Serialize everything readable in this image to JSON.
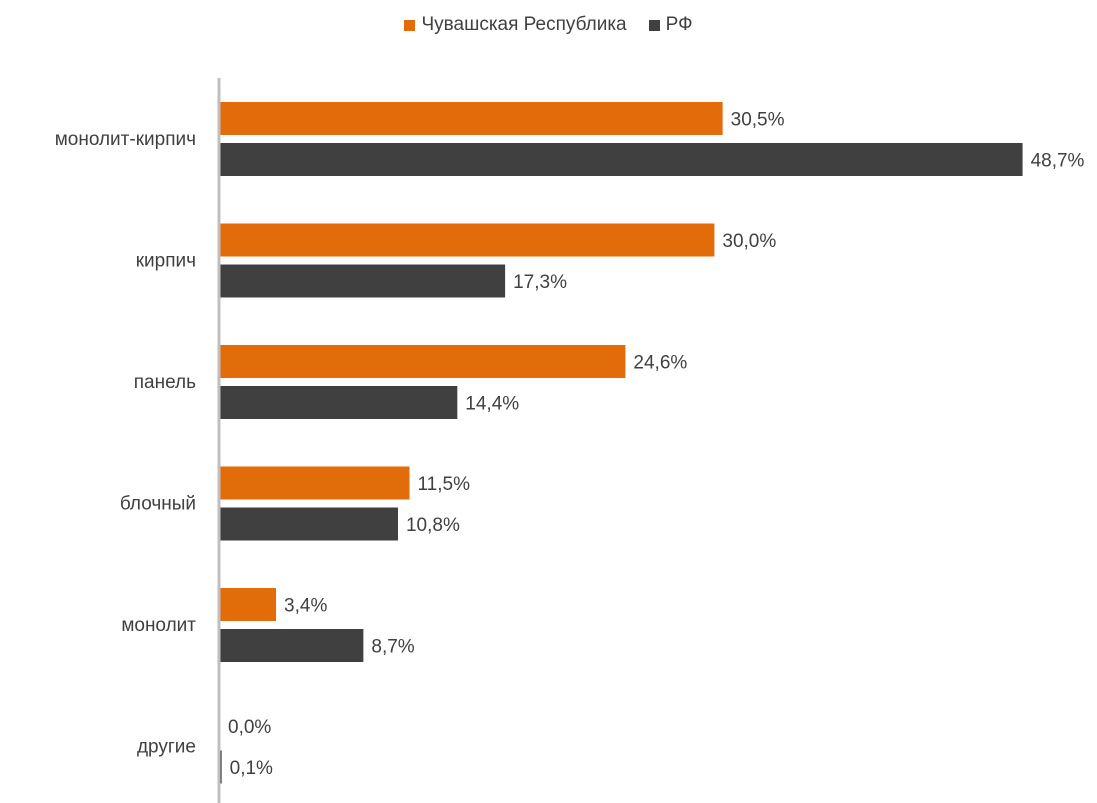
{
  "chart_data": {
    "type": "bar",
    "orientation": "horizontal",
    "categories": [
      "монолит-кирпич",
      "кирпич",
      "панель",
      "блочный",
      "монолит",
      "другие"
    ],
    "series": [
      {
        "name": "Чувашская Республика",
        "color": "#E36C0A",
        "values": [
          30.5,
          30.0,
          24.6,
          11.5,
          3.4,
          0.0
        ],
        "labels": [
          "30,5%",
          "30,0%",
          "24,6%",
          "11,5%",
          "3,4%",
          "0,0%"
        ]
      },
      {
        "name": "РФ",
        "color": "#404040",
        "values": [
          48.7,
          17.3,
          14.4,
          10.8,
          8.7,
          0.1
        ],
        "labels": [
          "48,7%",
          "17,3%",
          "14,4%",
          "10,8%",
          "8,7%",
          "0,1%"
        ]
      }
    ],
    "legend_position": "top-center",
    "grid": false
  }
}
